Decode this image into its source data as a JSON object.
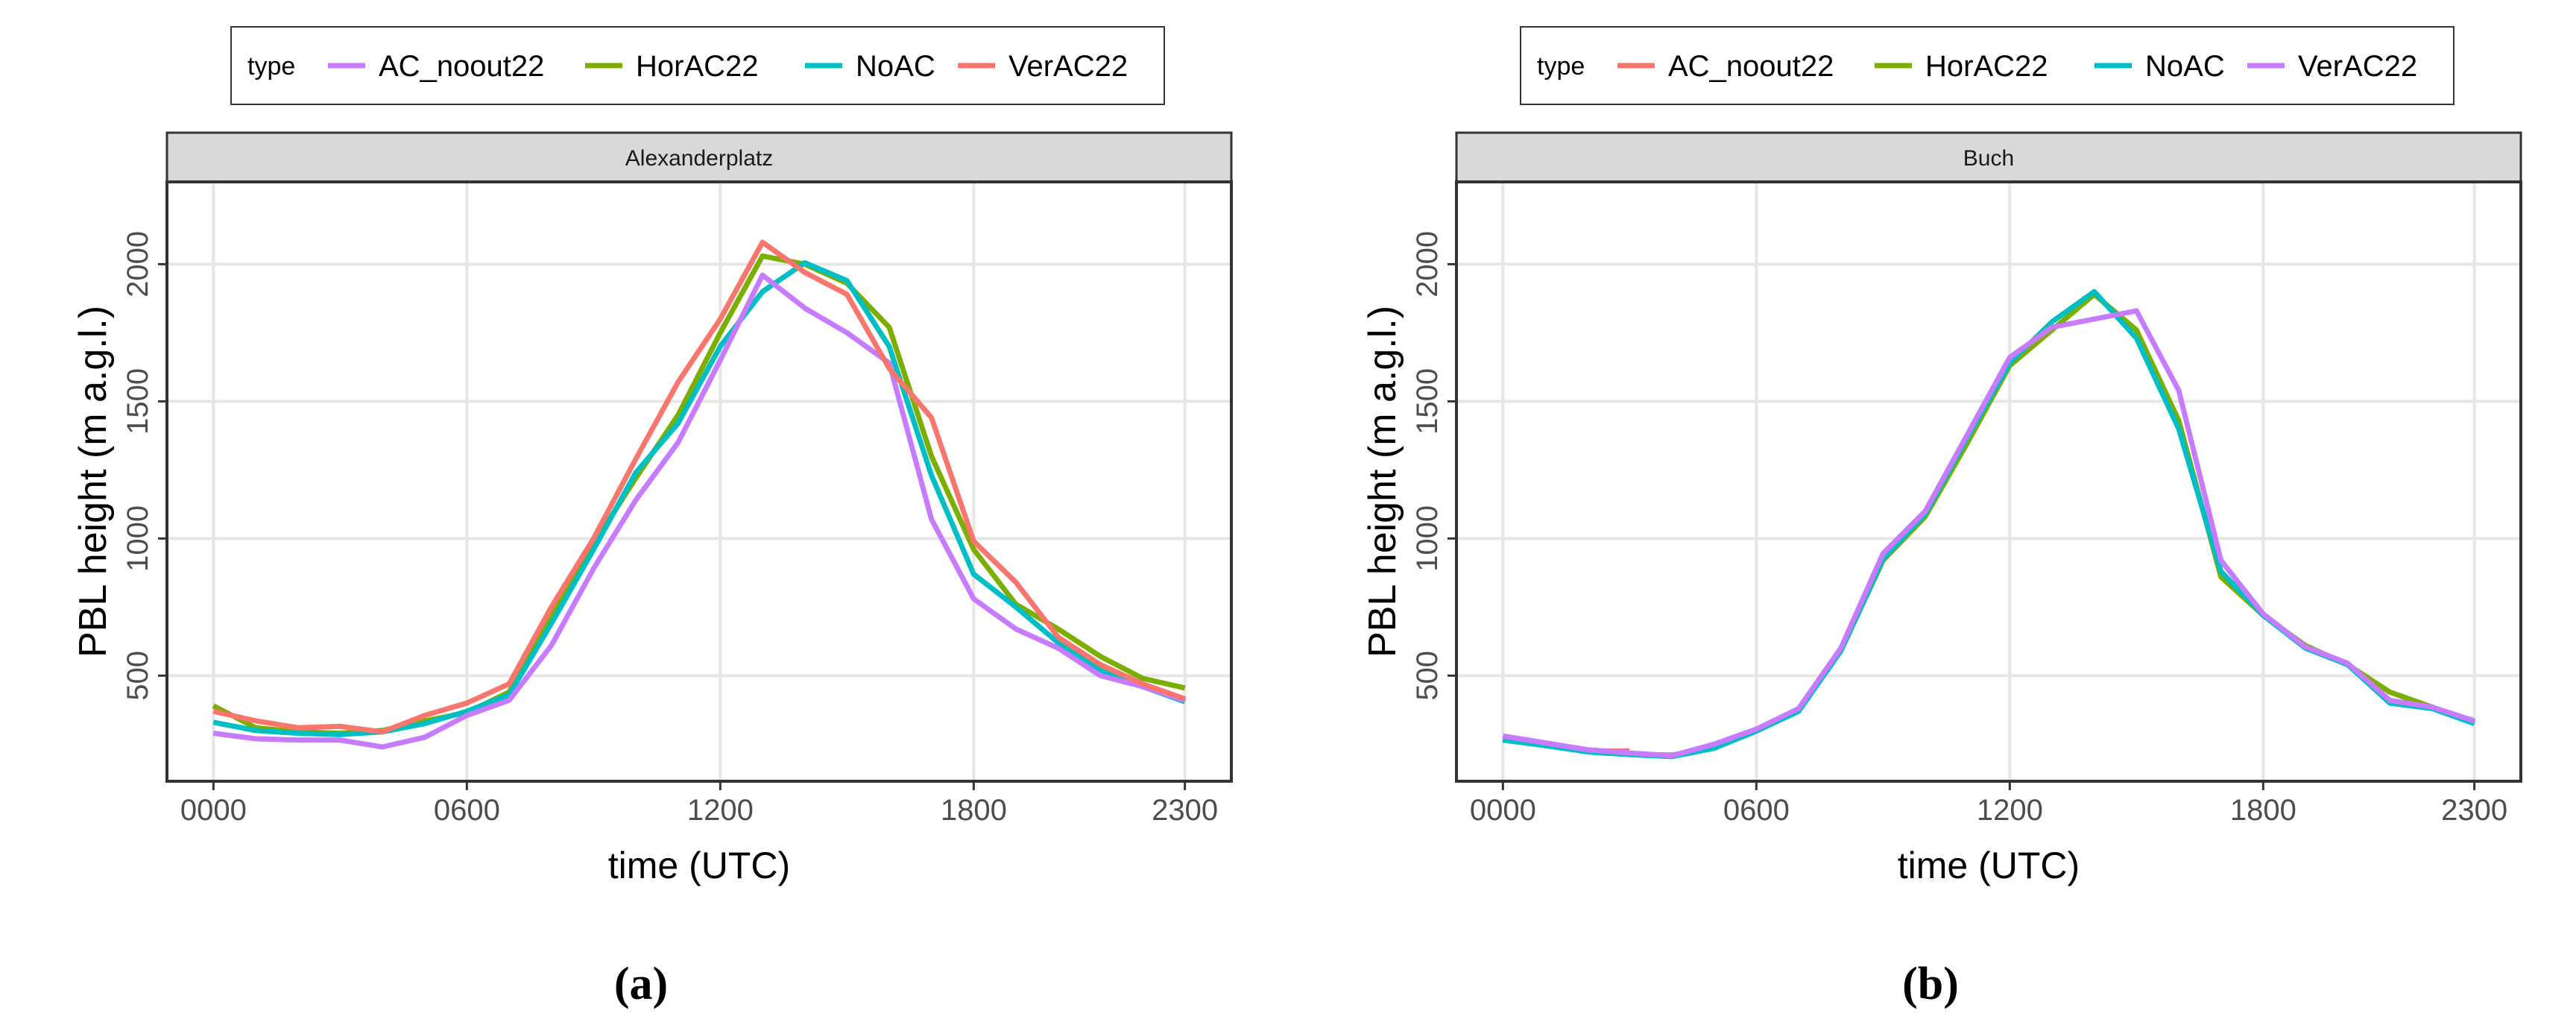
{
  "chart_data": [
    {
      "type": "line",
      "panel": "Alexanderplatz",
      "caption": "(a)",
      "xlabel": "time (UTC)",
      "ylabel": "PBL height (m a.g.l.)",
      "x_tick_labels": [
        "0000",
        "0600",
        "1200",
        "1800",
        "2300"
      ],
      "x_ticks": [
        0,
        6,
        12,
        18,
        23
      ],
      "y_ticks": [
        500,
        1000,
        1500,
        2000
      ],
      "xlim": [
        -1.1,
        24.1
      ],
      "ylim": [
        115,
        2300
      ],
      "grid": true,
      "legend": {
        "title": "type",
        "position": "top",
        "entries": [
          {
            "label": "AC_noout22",
            "color": "#C77CFF"
          },
          {
            "label": "HorAC22",
            "color": "#7CAE00"
          },
          {
            "label": "NoAC",
            "color": "#00BFC4"
          },
          {
            "label": "VerAC22",
            "color": "#F8766D"
          }
        ]
      },
      "x": [
        0,
        1,
        2,
        3,
        4,
        5,
        6,
        7,
        8,
        9,
        10,
        11,
        12,
        13,
        14,
        15,
        16,
        17,
        18,
        19,
        20,
        21,
        22,
        23
      ],
      "series": [
        {
          "name": "HorAC22",
          "color": "#7CAE00",
          "values": [
            390,
            310,
            295,
            290,
            300,
            335,
            365,
            440,
            720,
            980,
            1220,
            1450,
            1750,
            2030,
            2000,
            1930,
            1770,
            1300,
            960,
            760,
            670,
            570,
            490,
            455
          ]
        },
        {
          "name": "NoAC",
          "color": "#00BFC4",
          "values": [
            330,
            300,
            290,
            285,
            295,
            325,
            370,
            430,
            690,
            960,
            1240,
            1420,
            1700,
            1900,
            2005,
            1940,
            1700,
            1230,
            870,
            750,
            620,
            520,
            460,
            405
          ]
        },
        {
          "name": "AC_noout22",
          "color": "#C77CFF",
          "values": [
            290,
            270,
            265,
            265,
            240,
            275,
            355,
            410,
            610,
            890,
            1140,
            1350,
            1650,
            1960,
            1840,
            1750,
            1640,
            1070,
            780,
            670,
            600,
            500,
            460,
            410
          ]
        },
        {
          "name": "VerAC22",
          "color": "#F8766D",
          "values": [
            370,
            335,
            310,
            315,
            295,
            355,
            400,
            470,
            750,
            1000,
            1290,
            1570,
            1800,
            2080,
            1970,
            1890,
            1620,
            1440,
            990,
            840,
            640,
            540,
            470,
            415
          ]
        }
      ]
    },
    {
      "type": "line",
      "panel": "Buch",
      "caption": "(b)",
      "xlabel": "time (UTC)",
      "ylabel": "PBL height (m a.g.l.)",
      "x_tick_labels": [
        "0000",
        "0600",
        "1200",
        "1800",
        "2300"
      ],
      "x_ticks": [
        0,
        6,
        12,
        18,
        23
      ],
      "y_ticks": [
        500,
        1000,
        1500,
        2000
      ],
      "xlim": [
        -1.1,
        24.1
      ],
      "ylim": [
        115,
        2300
      ],
      "grid": true,
      "legend": {
        "title": "type",
        "position": "top",
        "entries": [
          {
            "label": "AC_noout22",
            "color": "#F8766D"
          },
          {
            "label": "HorAC22",
            "color": "#7CAE00"
          },
          {
            "label": "NoAC",
            "color": "#00BFC4"
          },
          {
            "label": "VerAC22",
            "color": "#C77CFF"
          }
        ]
      },
      "x": [
        0,
        1,
        2,
        3,
        4,
        5,
        6,
        7,
        8,
        9,
        10,
        11,
        12,
        13,
        14,
        15,
        16,
        17,
        18,
        19,
        20,
        21,
        22,
        23
      ],
      "series": [
        {
          "name": "AC_noout22",
          "color": "#F8766D",
          "x": [
            0,
            1,
            2,
            3
          ],
          "values": [
            275,
            245,
            225,
            225
          ]
        },
        {
          "name": "HorAC22",
          "color": "#7CAE00",
          "values": [
            270,
            245,
            225,
            215,
            210,
            240,
            300,
            375,
            590,
            920,
            1080,
            1350,
            1630,
            1760,
            1890,
            1760,
            1430,
            860,
            720,
            610,
            540,
            440,
            385,
            330
          ]
        },
        {
          "name": "NoAC",
          "color": "#00BFC4",
          "values": [
            265,
            245,
            222,
            212,
            205,
            235,
            298,
            370,
            590,
            925,
            1090,
            1370,
            1640,
            1790,
            1900,
            1730,
            1400,
            880,
            720,
            600,
            540,
            400,
            380,
            325
          ]
        },
        {
          "name": "VerAC22",
          "color": "#C77CFF",
          "values": [
            280,
            255,
            230,
            218,
            208,
            250,
            305,
            380,
            600,
            945,
            1100,
            1380,
            1660,
            1770,
            1800,
            1830,
            1540,
            920,
            725,
            605,
            545,
            410,
            385,
            335
          ]
        }
      ]
    }
  ]
}
